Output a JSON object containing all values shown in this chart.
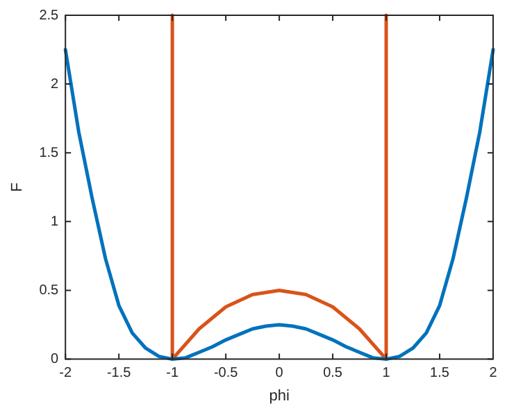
{
  "chart_data": {
    "type": "line",
    "xlabel": "phi",
    "ylabel": "F",
    "xlim": [
      -2,
      2
    ],
    "ylim": [
      0,
      2.5
    ],
    "xticks": [
      -2,
      -1.5,
      -1,
      -0.5,
      0,
      0.5,
      1,
      1.5,
      2
    ],
    "yticks": [
      0,
      0.5,
      1,
      1.5,
      2,
      2.5
    ],
    "grid": false,
    "legend": false,
    "marker": "none",
    "line_style": "solid",
    "series": [
      {
        "color": "#0072bd",
        "x": [
          -2,
          -1.875,
          -1.75,
          -1.625,
          -1.5,
          -1.375,
          -1.25,
          -1.125,
          -1,
          -0.875,
          -0.75,
          -0.625,
          -0.5,
          -0.375,
          -0.25,
          -0.125,
          0,
          0.125,
          0.25,
          0.375,
          0.5,
          0.625,
          0.75,
          0.875,
          1,
          1.125,
          1.25,
          1.375,
          1.5,
          1.625,
          1.75,
          1.875,
          2
        ],
        "values": [
          2.25,
          1.65,
          1.17,
          0.73,
          0.39,
          0.19,
          0.08,
          0.02,
          0,
          0.01,
          0.05,
          0.09,
          0.14,
          0.18,
          0.22,
          0.24,
          0.25,
          0.24,
          0.22,
          0.18,
          0.14,
          0.09,
          0.05,
          0.01,
          0,
          0.02,
          0.08,
          0.19,
          0.39,
          0.73,
          1.17,
          1.65,
          2.25
        ]
      },
      {
        "color": "#d95319",
        "x": [
          -1,
          -1,
          -0.75,
          -0.5,
          -0.25,
          0,
          0.25,
          0.5,
          0.75,
          1,
          1
        ],
        "values": [
          2.5,
          0,
          0.22,
          0.38,
          0.47,
          0.5,
          0.47,
          0.38,
          0.22,
          0,
          2.5
        ]
      }
    ]
  }
}
